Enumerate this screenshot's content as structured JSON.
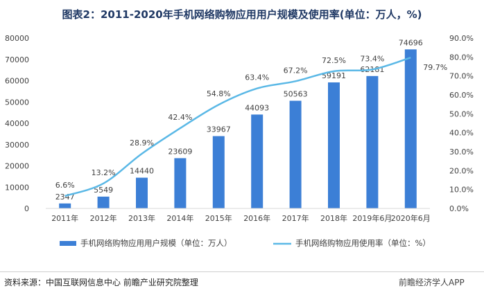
{
  "title": "图表2：2011-2020年手机网络购物应用用户规模及使用率(单位：万人，%)",
  "source": "资料来源：中国互联网信息中心 前瞻产业研究院整理",
  "brand": "前瞻经济学人APP",
  "colors": {
    "bar": "#3c7fd6",
    "line": "#5ab8e6",
    "axis": "#d9d9d9",
    "text": "#404040"
  },
  "chart_data": {
    "type": "bar+line",
    "categories": [
      "2011年",
      "2012年",
      "2013年",
      "2014年",
      "2015年",
      "2016年",
      "2017年",
      "2018年",
      "2019年6月",
      "2020年6月"
    ],
    "series": [
      {
        "name": "手机网络购物应用用户规模（单位：万人）",
        "type": "bar",
        "axis": "left",
        "values": [
          2347,
          5549,
          14440,
          23609,
          33967,
          44093,
          50563,
          59191,
          62181,
          74696
        ],
        "labels": [
          "2347",
          "5549",
          "14440",
          "23609",
          "33967",
          "44093",
          "50563",
          "59191",
          "62181",
          "74696"
        ]
      },
      {
        "name": "手机网络购物应用使用率（单位：%）",
        "type": "line",
        "axis": "right",
        "values": [
          6.6,
          13.2,
          28.9,
          42.4,
          54.8,
          63.4,
          67.2,
          72.5,
          73.4,
          79.7
        ],
        "labels": [
          "6.6%",
          "13.2%",
          "28.9%",
          "42.4%",
          "54.8%",
          "63.4%",
          "67.2%",
          "72.5%",
          "73.4%",
          "79.7%"
        ]
      }
    ],
    "y_left": {
      "min": 0,
      "max": 80000,
      "ticks": [
        "0",
        "10000",
        "20000",
        "30000",
        "40000",
        "50000",
        "60000",
        "70000",
        "80000"
      ]
    },
    "y_right": {
      "min": 0,
      "max": 90,
      "ticks": [
        "0.0%",
        "10.0%",
        "20.0%",
        "30.0%",
        "40.0%",
        "50.0%",
        "60.0%",
        "70.0%",
        "80.0%",
        "90.0%"
      ]
    },
    "grid": false,
    "legend_position": "bottom"
  }
}
